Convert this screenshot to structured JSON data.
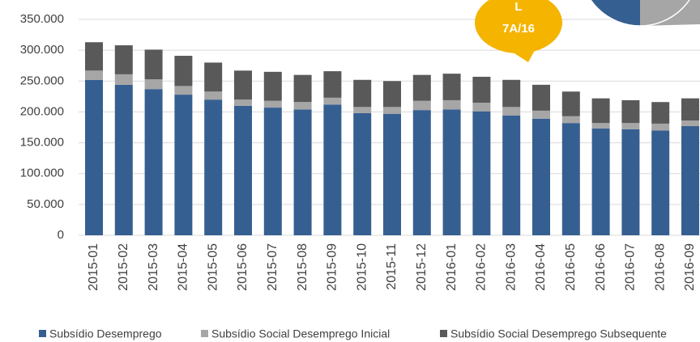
{
  "chart_data": {
    "type": "stacked_bar",
    "categories": [
      "2015-01",
      "2015-02",
      "2015-03",
      "2015-04",
      "2015-05",
      "2015-06",
      "2015-07",
      "2015-08",
      "2015-09",
      "2015-10",
      "2015-11",
      "2015-12",
      "2016-01",
      "2016-02",
      "2016-03",
      "2016-04",
      "2016-05",
      "2016-06",
      "2016-07",
      "2016-08",
      "2016-09"
    ],
    "series": [
      {
        "name": "Subsídio Desemprego",
        "color": "#365f91",
        "values": [
          252000,
          244000,
          237000,
          228000,
          220000,
          210000,
          207000,
          204000,
          212000,
          198000,
          197000,
          203000,
          204000,
          201000,
          194000,
          189000,
          182000,
          173000,
          172000,
          170000,
          177000
        ]
      },
      {
        "name": "Subsídio Social Desemprego Inicial",
        "color": "#a6a6a6",
        "values": [
          15000,
          17000,
          16000,
          14000,
          13000,
          10000,
          11000,
          12000,
          11000,
          10000,
          11000,
          15000,
          15000,
          14000,
          14000,
          13000,
          11000,
          9000,
          10000,
          11000,
          9000
        ]
      },
      {
        "name": "Subsídio Social Desemprego Subsequente",
        "color": "#595959",
        "values": [
          46000,
          47000,
          48000,
          49000,
          47000,
          47000,
          47000,
          44000,
          43000,
          44000,
          42000,
          42000,
          43000,
          42000,
          44000,
          42000,
          40000,
          40000,
          37000,
          35000,
          36000
        ]
      }
    ],
    "ylim": [
      0,
      350000
    ],
    "yticks": [
      0,
      {
        "value": 50000,
        "label": "50.000"
      },
      {
        "value": 100000,
        "label": "100.000"
      },
      {
        "value": 150000,
        "label": "150.000"
      },
      {
        "value": 200000,
        "label": "200.000"
      },
      {
        "value": 250000,
        "label": "250.000"
      },
      {
        "value": 300000,
        "label": "300.000"
      },
      {
        "value": 350000,
        "label": "350.000"
      }
    ],
    "grid": true,
    "legend": "bottom",
    "annotations": [
      "L",
      "7A/16"
    ]
  }
}
